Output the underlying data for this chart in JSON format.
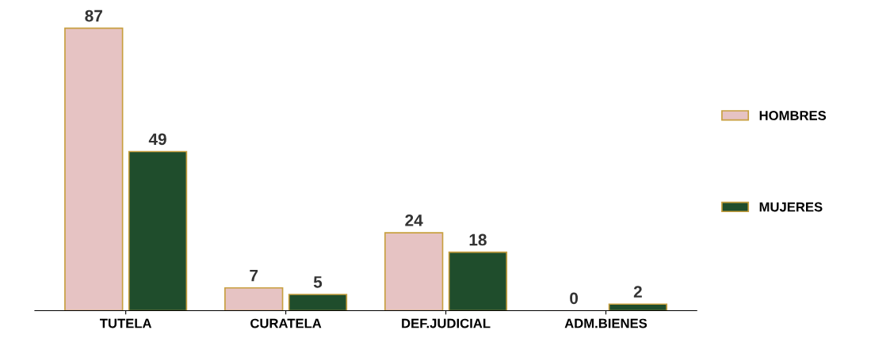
{
  "chart_data": {
    "type": "bar",
    "categories": [
      "TUTELA",
      "CURATELA",
      "DEF.JUDICIAL",
      "ADM.BIENES"
    ],
    "series": [
      {
        "name": "HOMBRES",
        "color": "#e6c3c3",
        "values": [
          87,
          7,
          24,
          0
        ]
      },
      {
        "name": "MUJERES",
        "color": "#1f4d2c",
        "values": [
          49,
          5,
          18,
          2
        ]
      }
    ],
    "data_labels": true,
    "legend": "right",
    "tick_labels": "x",
    "grid": false
  }
}
